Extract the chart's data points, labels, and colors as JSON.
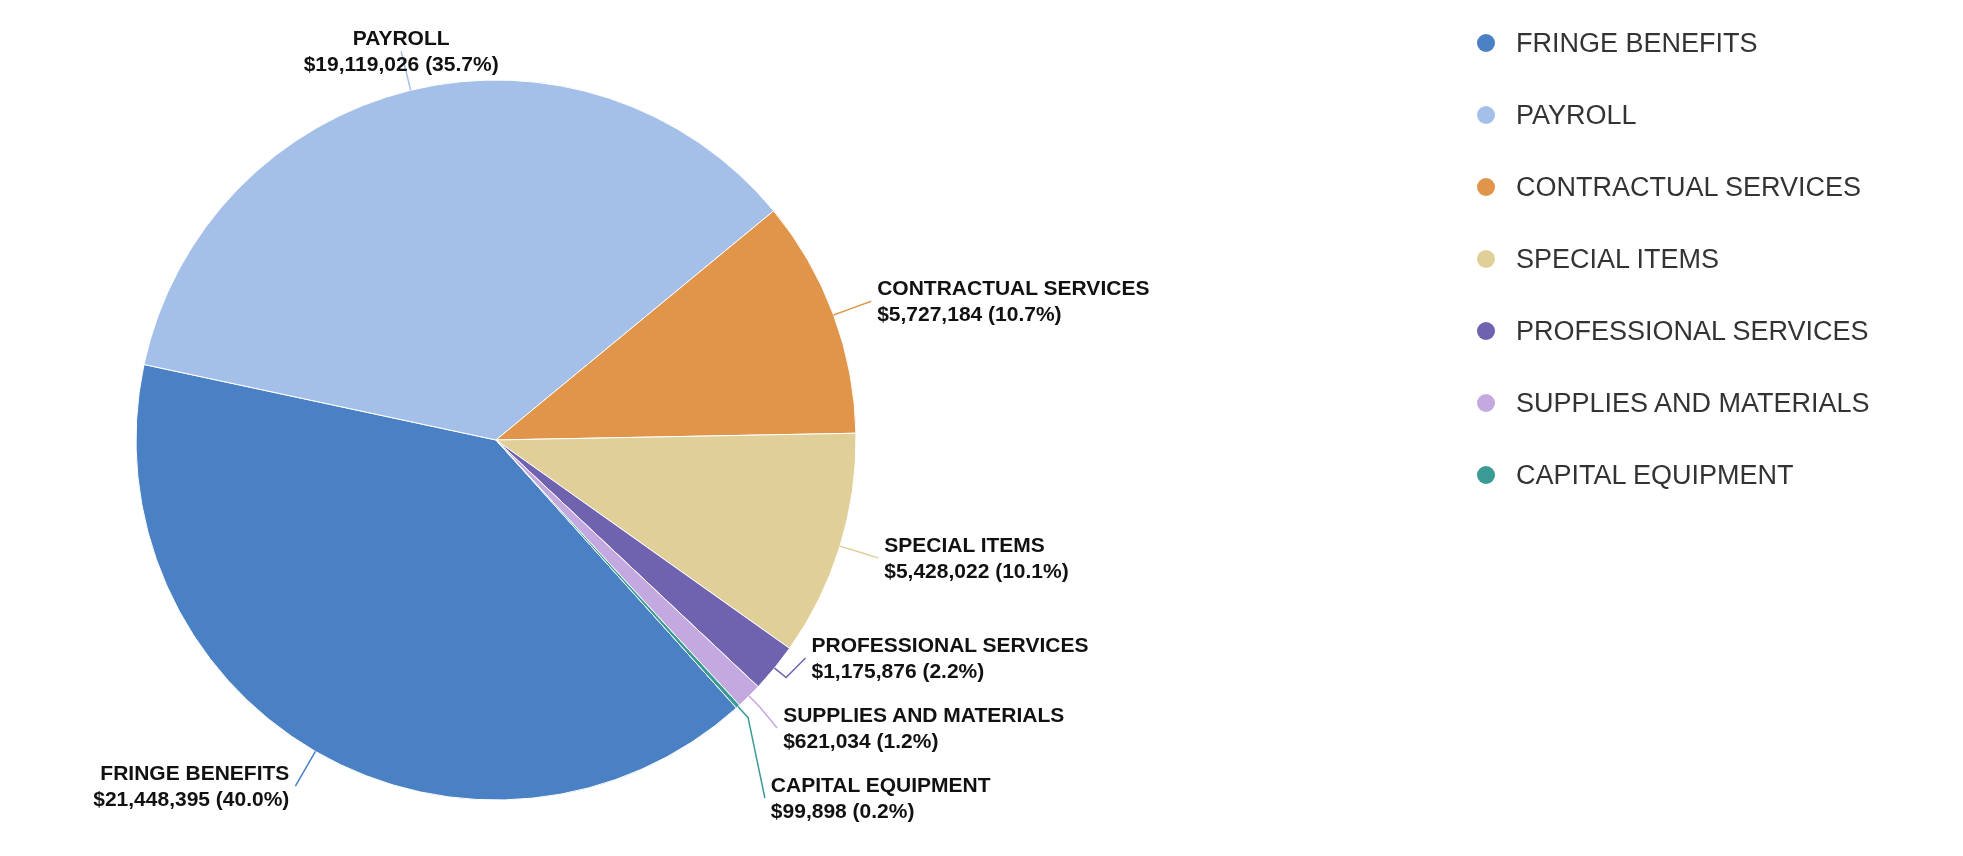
{
  "chart_data": {
    "type": "pie",
    "categories": [
      "FRINGE BENEFITS",
      "PAYROLL",
      "CONTRACTUAL SERVICES",
      "SPECIAL ITEMS",
      "PROFESSIONAL SERVICES",
      "SUPPLIES AND MATERIALS",
      "CAPITAL EQUIPMENT"
    ],
    "values": [
      21448395,
      19119026,
      5727184,
      5428022,
      1175876,
      621034,
      99898
    ],
    "colors": [
      "#4a80c4",
      "#a4c0e8",
      "#e0954a",
      "#e0cf98",
      "#6f63b0",
      "#c4a8e0",
      "#3a9a96"
    ],
    "value_labels": [
      "$21,448,395 (40.0%)",
      "$19,119,026 (35.7%)",
      "$5,727,184 (10.7%)",
      "$5,428,022 (10.1%)",
      "$1,175,876 (2.2%)",
      "$621,034 (1.2%)",
      "$99,898 (0.2%)"
    ],
    "legend": "top right"
  }
}
